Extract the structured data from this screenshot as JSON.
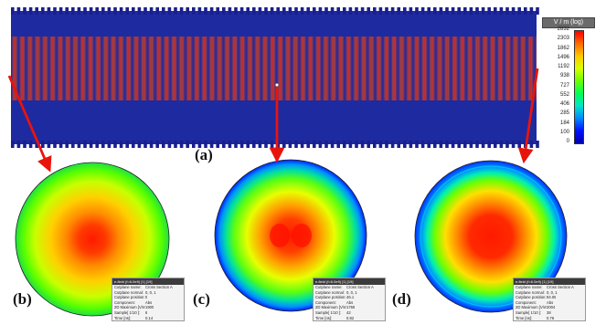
{
  "figure": {
    "panel_labels": [
      "(a)",
      "(b)",
      "(c)",
      "(d)"
    ]
  },
  "legend": {
    "title": "V / m (log)",
    "ticks": [
      "2832",
      "2303",
      "1862",
      "1496",
      "1192",
      "938",
      "727",
      "552",
      "406",
      "285",
      "184",
      "100",
      "0"
    ],
    "colormap": [
      "#ff0000",
      "#ff6a00",
      "#ffc800",
      "#d8ff00",
      "#6cff00",
      "#00ff55",
      "#00e5c8",
      "#0088ff",
      "#0010ff",
      "#0000aa"
    ]
  },
  "info_boxes": [
    {
      "header": "e-field (f=6.0e9) [1] [19]",
      "rows": [
        [
          "Cutplane name:",
          "Cross Section A"
        ],
        [
          "Cutplane normal:",
          "0, 0, 1"
        ],
        [
          "Cutplane position:",
          "0"
        ],
        [
          "Component:",
          "Abs"
        ],
        [
          "2D Maximum [V/m]:",
          "1900"
        ],
        [
          "Sample[ 1/10 ]:",
          "6"
        ],
        [
          "Time [ns]:",
          "0.14"
        ]
      ]
    },
    {
      "header": "e-field (f=6.0e9) [1] [19]",
      "rows": [
        [
          "Cutplane name:",
          "Cross Section A"
        ],
        [
          "Cutplane normal:",
          "0, 0, 1"
        ],
        [
          "Cutplane position:",
          "46.1"
        ],
        [
          "Component:",
          "Abs"
        ],
        [
          "2D Maximum [V/m]:",
          "1769"
        ],
        [
          "Sample[ 1/10 ]:",
          "42"
        ],
        [
          "Time [ns]:",
          "0.82"
        ]
      ]
    },
    {
      "header": "e-field (f=6.0e9) [1] [19]",
      "rows": [
        [
          "Cutplane name:",
          "Cross Section A"
        ],
        [
          "Cutplane normal:",
          "0, 0, 1"
        ],
        [
          "Cutplane position:",
          "94.05"
        ],
        [
          "Component:",
          "Abs"
        ],
        [
          "2D Maximum [V/m]:",
          "2004"
        ],
        [
          "Sample[ 1/10 ]:",
          "38"
        ],
        [
          "Time [ns]:",
          "0.76"
        ]
      ]
    }
  ],
  "colors": {
    "arrow": "#e8140c",
    "field_high": "#ff1a00",
    "field_low": "#0010ff"
  }
}
